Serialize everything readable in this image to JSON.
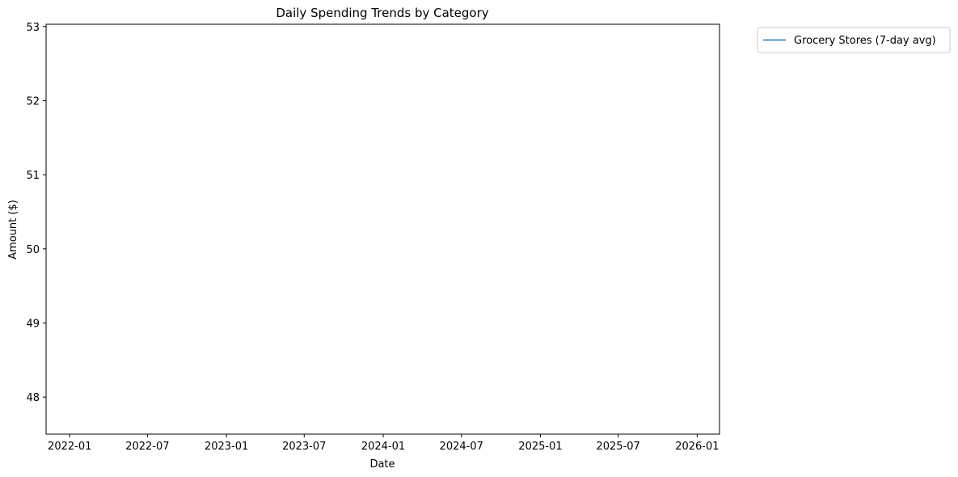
{
  "chart_data": {
    "type": "line",
    "title": "Daily Spending Trends by Category",
    "xlabel": "Date",
    "ylabel": "Amount ($)",
    "xlim": [
      "2021-11-07",
      "2026-02-22"
    ],
    "ylim": [
      47.5,
      53.03
    ],
    "x_ticks": [
      "2022-01",
      "2022-07",
      "2023-01",
      "2023-07",
      "2024-01",
      "2024-07",
      "2025-01",
      "2025-07",
      "2026-01"
    ],
    "y_ticks": [
      48,
      49,
      50,
      51,
      52,
      53
    ],
    "grid": false,
    "legend_position": "outside-top-right",
    "series": [
      {
        "name": "Grocery Stores (7-day avg)",
        "color": "#1f77b4",
        "x": [],
        "y": []
      }
    ]
  }
}
